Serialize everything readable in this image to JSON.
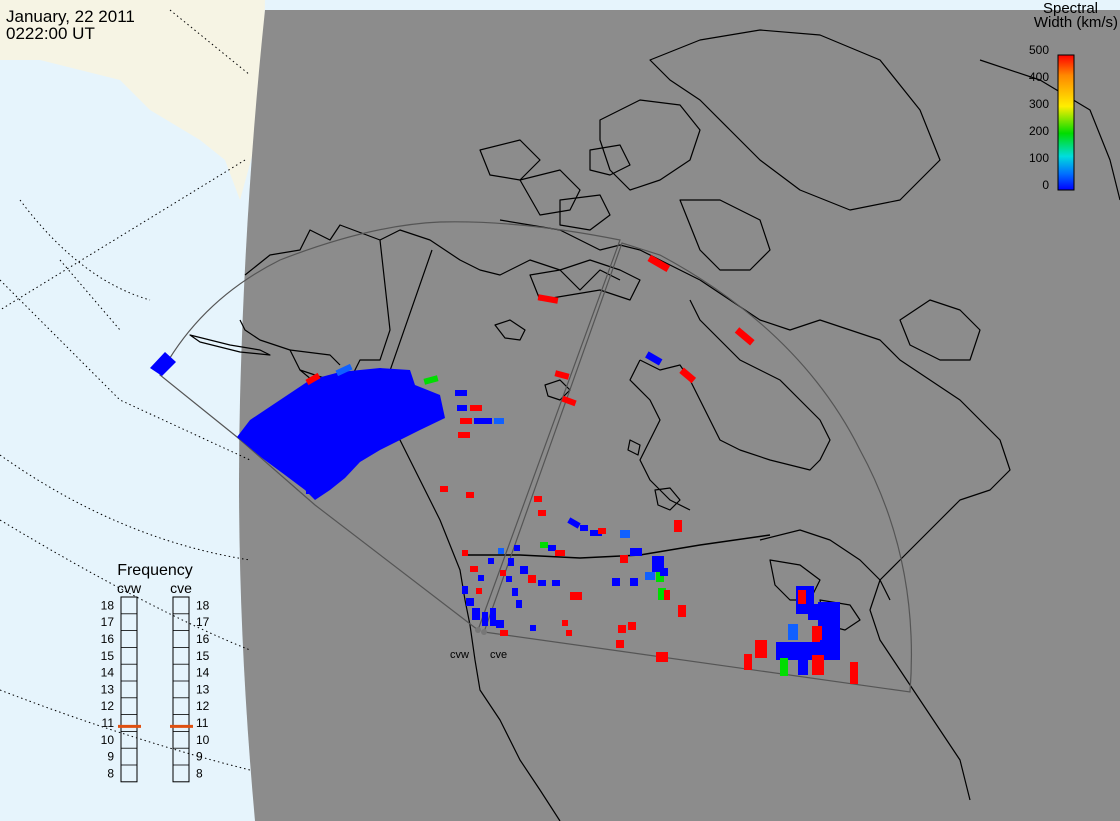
{
  "header": {
    "date": "January, 22 2011",
    "time": "0222:00 UT"
  },
  "colorbar": {
    "title_line1": "Spectral",
    "title_line2": "Width (km/s)",
    "ticks": [
      "500",
      "400",
      "300",
      "200",
      "100",
      "0"
    ],
    "gradient": [
      "#ff0000",
      "#ff8800",
      "#ffee00",
      "#00dd00",
      "#00dddd",
      "#0070ff",
      "#0000ff"
    ]
  },
  "frequency_panel": {
    "title": "Frequency",
    "radars": [
      {
        "name": "cvw",
        "selected_mhz": 10.8
      },
      {
        "name": "cve",
        "selected_mhz": 10.8
      }
    ],
    "scale": [
      "18",
      "17",
      "16",
      "15",
      "14",
      "13",
      "12",
      "11",
      "10",
      "9",
      "8"
    ],
    "marker_color": "#e05010"
  },
  "radar_sites": [
    {
      "name": "cvw"
    },
    {
      "name": "cve"
    }
  ],
  "colors": {
    "land": "#8c8c8c",
    "ocean_outside": "#e6f4fc",
    "sea_ice": "#f6f4e4",
    "width_low": "#0000ff",
    "width_high": "#ff0000"
  }
}
